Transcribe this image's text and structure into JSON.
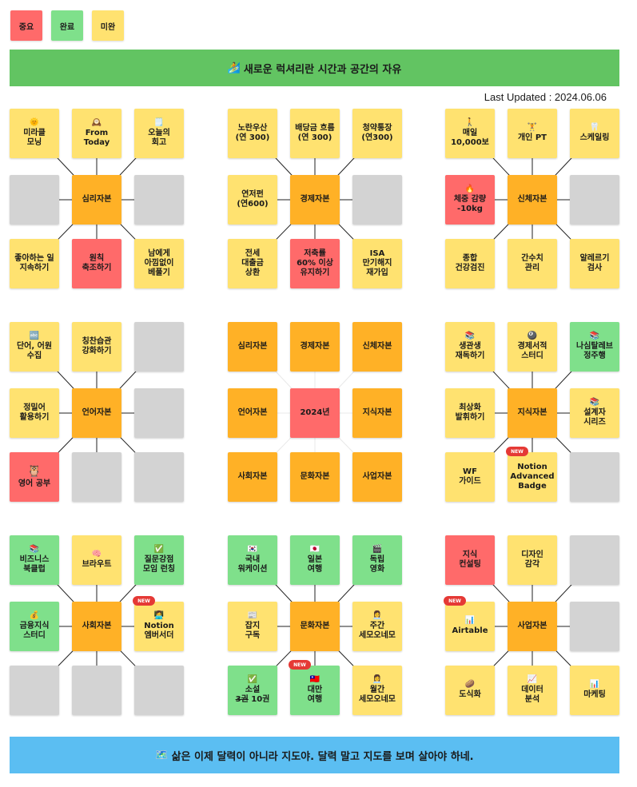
{
  "legend": [
    {
      "label": "중요",
      "color": "#ff6a6a"
    },
    {
      "label": "완료",
      "color": "#7fe08b"
    },
    {
      "label": "미완",
      "color": "#ffe270"
    }
  ],
  "header": {
    "icon": "🏄",
    "text": "새로운 럭셔리란 시간과 공간의 자유",
    "color": "#62c462"
  },
  "last_updated": "Last Updated : 2024.06.06",
  "new_tag": "NEW",
  "footer": {
    "icon": "🗺️",
    "text": "삶은 이제 달력이 아니라 지도야. 달력 말고 지도를 보며 살아야 하네.",
    "color": "#5bbef2"
  },
  "grids": [
    {
      "name": "grid-psychology",
      "cells": [
        {
          "icon": "🌞",
          "text": "미라클\n모닝",
          "color": "yellow"
        },
        {
          "icon": "🕰️",
          "text": "From\nToday",
          "color": "yellow"
        },
        {
          "icon": "🗒️",
          "text": "오늘의\n회고",
          "color": "yellow"
        },
        {
          "text": "",
          "color": "gray"
        },
        {
          "text": "심리자본",
          "color": "orange"
        },
        {
          "text": "",
          "color": "gray"
        },
        {
          "text": "좋아하는 일\n지속하기",
          "color": "yellow"
        },
        {
          "text": "원칙\n축조하기",
          "color": "red"
        },
        {
          "text": "남에게\n아낌없이\n베풀기",
          "color": "yellow"
        }
      ]
    },
    {
      "name": "grid-economy",
      "cells": [
        {
          "text": "노란우산\n(연 300)",
          "color": "yellow"
        },
        {
          "text": "배당금 흐름\n(연 300)",
          "color": "yellow"
        },
        {
          "text": "청약통장\n(연300)",
          "color": "yellow"
        },
        {
          "text": "연저펀\n(연600)",
          "color": "yellow"
        },
        {
          "text": "경제자본",
          "color": "orange"
        },
        {
          "text": "",
          "color": "gray"
        },
        {
          "text": "전세\n대출금\n상환",
          "color": "yellow"
        },
        {
          "text": "저축률\n60% 이상\n유지하기",
          "color": "red"
        },
        {
          "text": "ISA\n만기해지\n재가입",
          "color": "yellow"
        }
      ]
    },
    {
      "name": "grid-body",
      "cells": [
        {
          "icon": "🚶",
          "text": "매일\n10,000보",
          "color": "yellow"
        },
        {
          "icon": "🏋️",
          "text": "개인 PT",
          "color": "yellow"
        },
        {
          "icon": "🦷",
          "text": "스케일링",
          "color": "yellow"
        },
        {
          "icon": "🔥",
          "text": "체중 감량\n-10kg",
          "color": "red"
        },
        {
          "text": "신체자본",
          "color": "orange"
        },
        {
          "text": "",
          "color": "gray"
        },
        {
          "text": "종합\n건강검진",
          "color": "yellow"
        },
        {
          "text": "간수치\n관리",
          "color": "yellow"
        },
        {
          "text": "알레르기\n검사",
          "color": "yellow"
        }
      ]
    },
    {
      "name": "grid-language",
      "cells": [
        {
          "icon": "🔤",
          "text": "단어, 어원\n수집",
          "color": "yellow"
        },
        {
          "text": "칭찬습관\n강화하기",
          "color": "yellow"
        },
        {
          "text": "",
          "color": "gray"
        },
        {
          "text": "정밀어\n활용하기",
          "color": "yellow"
        },
        {
          "text": "언어자본",
          "color": "orange"
        },
        {
          "text": "",
          "color": "gray"
        },
        {
          "icon": "🦉",
          "text": "영어 공부",
          "color": "red",
          "bigicon": true
        },
        {
          "text": "",
          "color": "gray"
        },
        {
          "text": "",
          "color": "gray"
        }
      ]
    },
    {
      "name": "grid-center",
      "cells": [
        {
          "text": "심리자본",
          "color": "orange"
        },
        {
          "text": "경제자본",
          "color": "orange"
        },
        {
          "text": "신체자본",
          "color": "orange"
        },
        {
          "text": "언어자본",
          "color": "orange"
        },
        {
          "text": "2024년",
          "color": "red"
        },
        {
          "text": "지식자본",
          "color": "orange"
        },
        {
          "text": "사회자본",
          "color": "orange"
        },
        {
          "text": "문화자본",
          "color": "orange"
        },
        {
          "text": "사업자본",
          "color": "orange"
        }
      ]
    },
    {
      "name": "grid-knowledge",
      "cells": [
        {
          "icon": "📚",
          "text": "생관생\n재독하기",
          "color": "yellow"
        },
        {
          "icon": "🎱",
          "text": "경제서적\n스터디",
          "color": "yellow"
        },
        {
          "icon": "📚",
          "text": "나심탈레브\n정주행",
          "color": "green"
        },
        {
          "text": "최상화\n발휘하기",
          "color": "yellow"
        },
        {
          "text": "지식자본",
          "color": "orange"
        },
        {
          "icon": "📚",
          "text": "설계자\n시리즈",
          "color": "yellow"
        },
        {
          "text": "WF\n가이드",
          "color": "yellow"
        },
        {
          "text": "Notion\nAdvanced\nBadge",
          "color": "yellow",
          "isnew": true
        },
        {
          "text": "",
          "color": "gray"
        }
      ]
    },
    {
      "name": "grid-social",
      "cells": [
        {
          "icon": "📚",
          "text": "비즈니스\n북클럽",
          "color": "green"
        },
        {
          "icon": "🧠",
          "text": "브라우트",
          "color": "yellow"
        },
        {
          "icon": "✅",
          "text": "질문강점\n모임 런칭",
          "color": "green"
        },
        {
          "icon": "💰",
          "text": "금융지식\n스터디",
          "color": "green"
        },
        {
          "text": "사회자본",
          "color": "orange"
        },
        {
          "icon": "👩‍💻",
          "text": "Notion\n엠버서더",
          "color": "yellow",
          "isnew": true
        },
        {
          "text": "",
          "color": "gray"
        },
        {
          "text": "",
          "color": "gray"
        },
        {
          "text": "",
          "color": "gray"
        }
      ]
    },
    {
      "name": "grid-culture",
      "cells": [
        {
          "icon": "🇰🇷",
          "text": "국내\n워케이션",
          "color": "green"
        },
        {
          "icon": "🇯🇵",
          "text": "일본\n여행",
          "color": "green"
        },
        {
          "icon": "🎬",
          "text": "독립\n영화",
          "color": "green"
        },
        {
          "icon": "📰",
          "text": "잡지\n구독",
          "color": "yellow"
        },
        {
          "text": "문화자본",
          "color": "orange"
        },
        {
          "icon": "👩‍💼",
          "text": "주간\n세모오네모",
          "color": "yellow"
        },
        {
          "icon": "✅",
          "text": "소설",
          "strike": "3권",
          "tail": " 10권",
          "color": "green"
        },
        {
          "icon": "🇹🇼",
          "text": "대만\n여행",
          "color": "green",
          "isnew": true
        },
        {
          "icon": "👩‍💼",
          "text": "월간\n세모오네모",
          "color": "yellow"
        }
      ]
    },
    {
      "name": "grid-business",
      "cells": [
        {
          "text": "지식\n컨설팅",
          "color": "red"
        },
        {
          "text": "디자인\n감각",
          "color": "yellow"
        },
        {
          "text": "",
          "color": "gray"
        },
        {
          "icon": "📊",
          "text": "Airtable",
          "color": "yellow",
          "isnew": true
        },
        {
          "text": "사업자본",
          "color": "orange"
        },
        {
          "text": "",
          "color": "gray"
        },
        {
          "icon": "🥔",
          "text": "도식화",
          "color": "yellow"
        },
        {
          "icon": "📈",
          "text": "데이터\n분석",
          "color": "yellow"
        },
        {
          "icon": "📊",
          "text": "마케팅",
          "color": "yellow"
        }
      ]
    }
  ]
}
